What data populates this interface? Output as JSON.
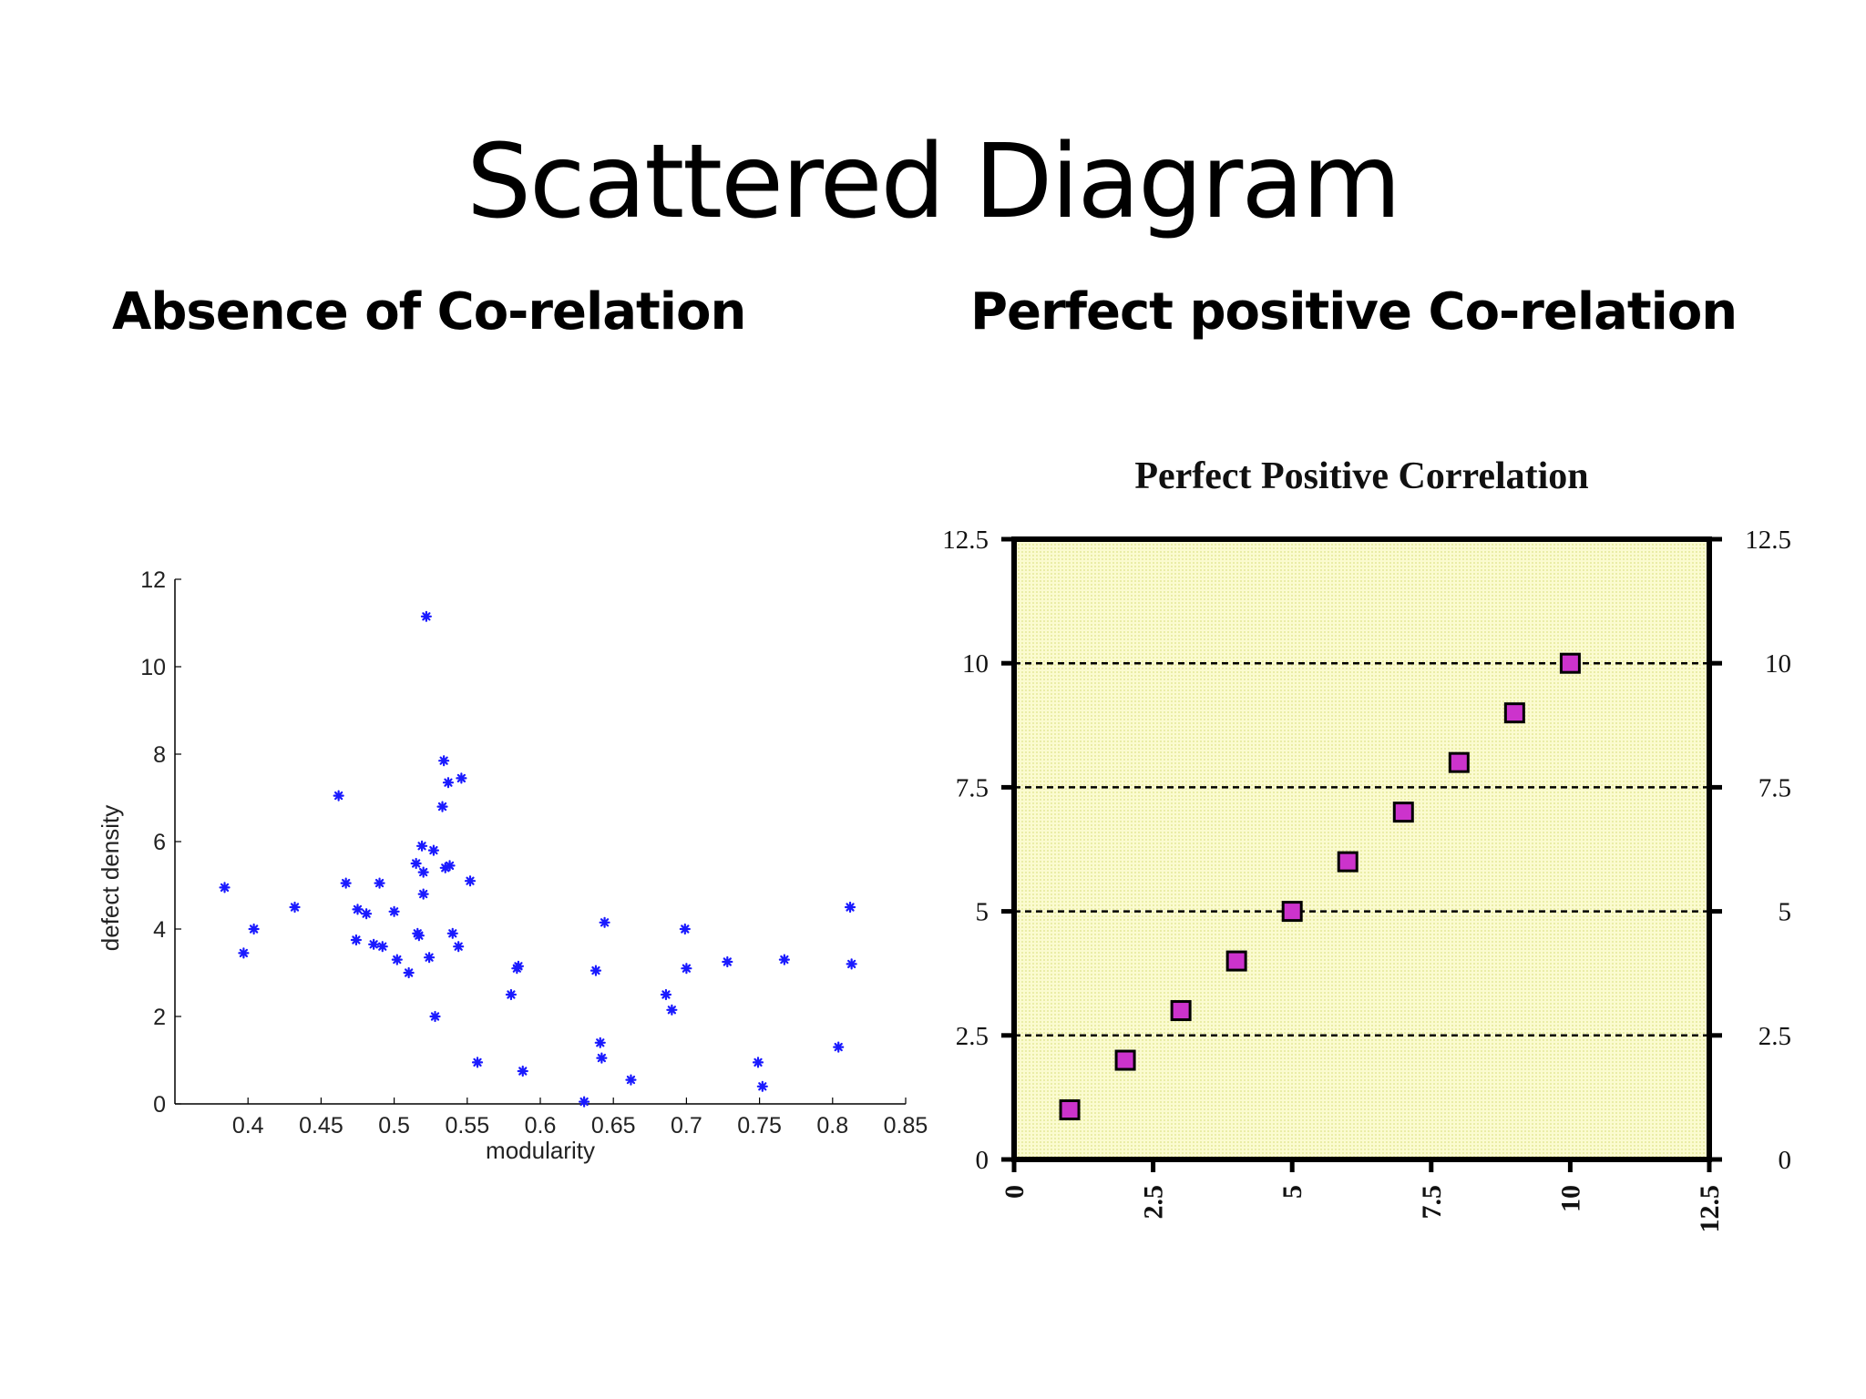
{
  "slide": {
    "title": "Scattered Diagram",
    "left_heading": "Absence of Co-relation",
    "right_heading": "Perfect positive Co-relation"
  },
  "colors": {
    "left_marker": "#1a1aff",
    "right_marker": "#cc33cc",
    "right_plot_bg": "#f7f8b8"
  },
  "chart_data": [
    {
      "type": "scatter",
      "title": "",
      "xlabel": "modularity",
      "ylabel": "defect density",
      "xlim": [
        0.35,
        0.85
      ],
      "ylim": [
        0,
        12
      ],
      "xticks": [
        "0.4",
        "0.45",
        "0.5",
        "0.55",
        "0.6",
        "0.65",
        "0.7",
        "0.75",
        "0.8",
        "0.85"
      ],
      "yticks": [
        "0",
        "2",
        "4",
        "6",
        "8",
        "10",
        "12"
      ],
      "marker": "*",
      "points": [
        [
          0.384,
          4.95
        ],
        [
          0.397,
          3.45
        ],
        [
          0.404,
          4.0
        ],
        [
          0.432,
          4.5
        ],
        [
          0.462,
          7.05
        ],
        [
          0.467,
          5.05
        ],
        [
          0.474,
          3.75
        ],
        [
          0.475,
          4.45
        ],
        [
          0.481,
          4.35
        ],
        [
          0.486,
          3.65
        ],
        [
          0.49,
          5.05
        ],
        [
          0.492,
          3.6
        ],
        [
          0.5,
          4.4
        ],
        [
          0.502,
          3.3
        ],
        [
          0.51,
          3.0
        ],
        [
          0.515,
          5.5
        ],
        [
          0.516,
          3.9
        ],
        [
          0.517,
          3.85
        ],
        [
          0.519,
          5.9
        ],
        [
          0.52,
          5.3
        ],
        [
          0.52,
          4.8
        ],
        [
          0.522,
          11.15
        ],
        [
          0.524,
          3.35
        ],
        [
          0.527,
          5.8
        ],
        [
          0.528,
          2.0
        ],
        [
          0.533,
          6.8
        ],
        [
          0.534,
          7.85
        ],
        [
          0.535,
          5.4
        ],
        [
          0.537,
          7.35
        ],
        [
          0.538,
          5.45
        ],
        [
          0.54,
          3.9
        ],
        [
          0.544,
          3.6
        ],
        [
          0.546,
          7.45
        ],
        [
          0.552,
          5.1
        ],
        [
          0.557,
          0.95
        ],
        [
          0.58,
          2.5
        ],
        [
          0.584,
          3.1
        ],
        [
          0.585,
          3.15
        ],
        [
          0.588,
          0.75
        ],
        [
          0.63,
          0.05
        ],
        [
          0.638,
          3.05
        ],
        [
          0.641,
          1.4
        ],
        [
          0.642,
          1.05
        ],
        [
          0.644,
          4.15
        ],
        [
          0.662,
          0.55
        ],
        [
          0.686,
          2.5
        ],
        [
          0.69,
          2.15
        ],
        [
          0.699,
          4.0
        ],
        [
          0.7,
          3.1
        ],
        [
          0.728,
          3.25
        ],
        [
          0.749,
          0.95
        ],
        [
          0.752,
          0.4
        ],
        [
          0.767,
          3.3
        ],
        [
          0.804,
          1.3
        ],
        [
          0.812,
          4.5
        ],
        [
          0.813,
          3.2
        ]
      ]
    },
    {
      "type": "scatter",
      "title": "Perfect Positive Correlation",
      "xlabel": "",
      "ylabel": "",
      "xlim": [
        0,
        12.5
      ],
      "ylim": [
        0,
        12.5
      ],
      "xticks": [
        "0",
        "2.5",
        "5",
        "7.5",
        "10",
        "12.5"
      ],
      "yticks": [
        "0",
        "2.5",
        "5",
        "7.5",
        "10",
        "12.5"
      ],
      "gridlines_y": [
        2.5,
        5,
        7.5,
        10
      ],
      "marker": "square",
      "points": [
        [
          1,
          1
        ],
        [
          2,
          2
        ],
        [
          3,
          3
        ],
        [
          4,
          4
        ],
        [
          5,
          5
        ],
        [
          6,
          6
        ],
        [
          7,
          7
        ],
        [
          8,
          8
        ],
        [
          9,
          9
        ],
        [
          10,
          10
        ]
      ]
    }
  ]
}
